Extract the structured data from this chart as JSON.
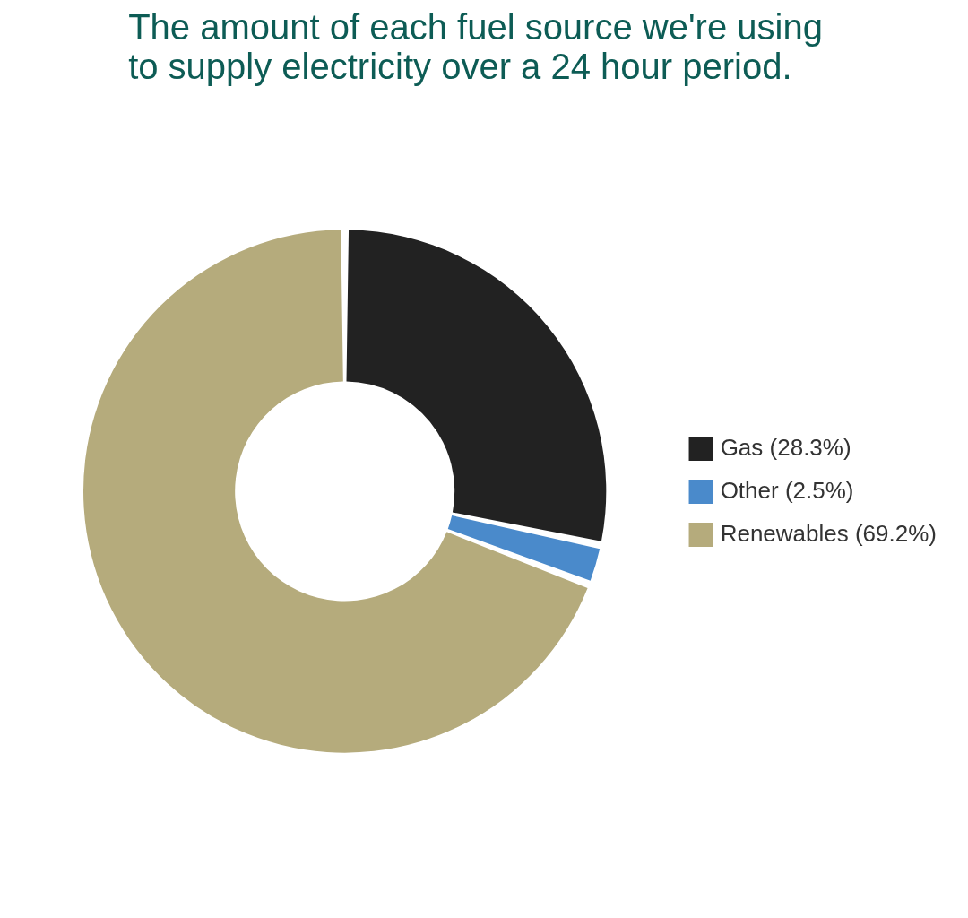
{
  "chart_data": {
    "type": "donut",
    "title": "The amount of each fuel source we're using to supply electricity over a 24 hour period.",
    "categories": [
      "Gas (28.3%)",
      "Other (2.5%)",
      "Renewables (69.2%)"
    ],
    "values": [
      28.3,
      2.5,
      69.2
    ],
    "colors": [
      "#222222",
      "#4a8acb",
      "#b5ab7c"
    ],
    "legend": "right"
  }
}
